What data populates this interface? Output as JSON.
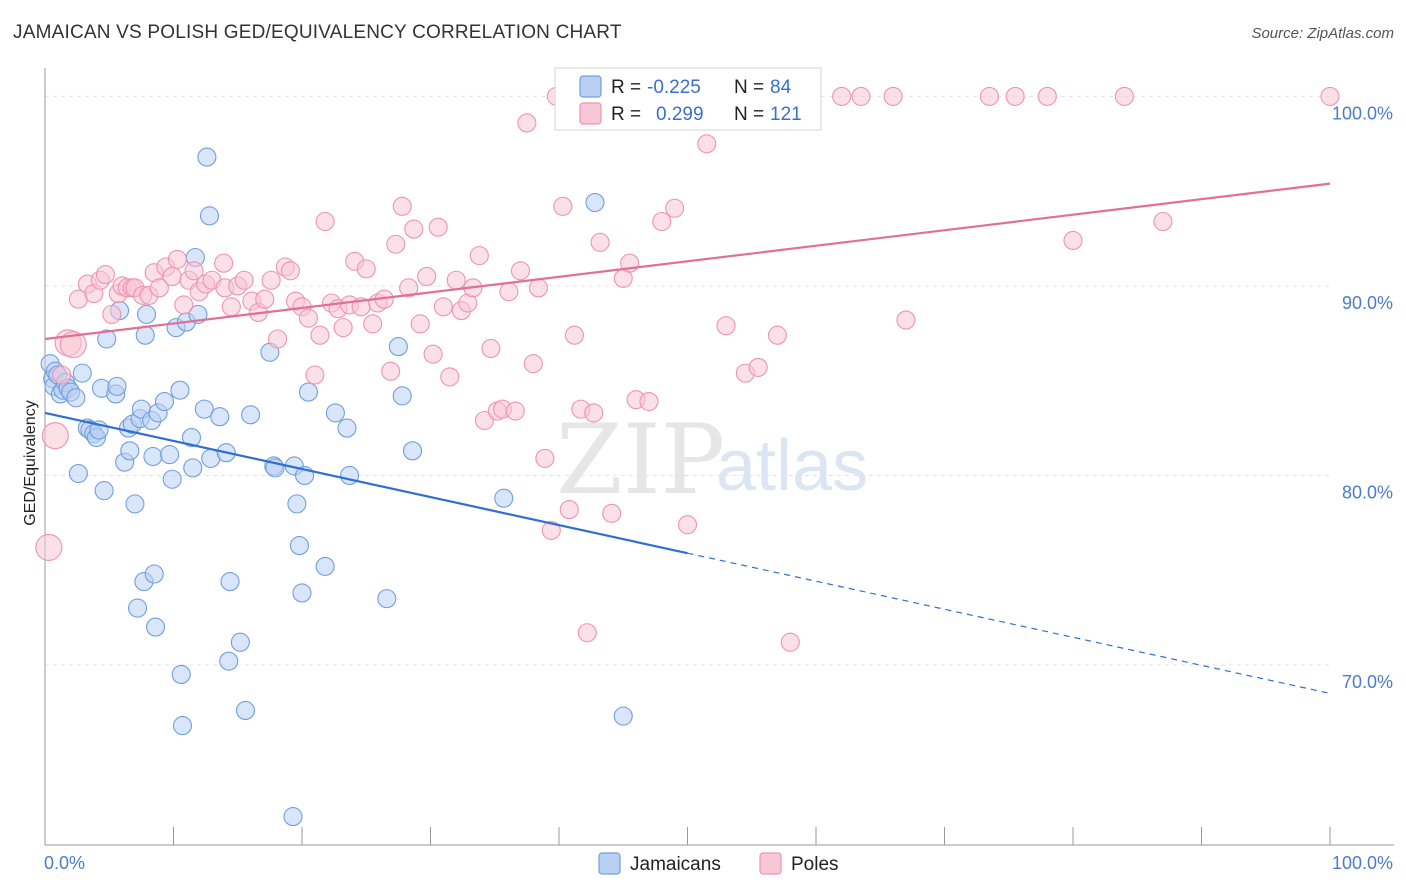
{
  "chart_data": {
    "type": "scatter",
    "title": "JAMAICAN VS POLISH GED/EQUIVALENCY CORRELATION CHART",
    "source": "Source: ZipAtlas.com",
    "xlabel": "",
    "ylabel": "GED/Equivalency",
    "xlim": [
      0,
      100
    ],
    "ylim": [
      60.5,
      101.5
    ],
    "x_tick_labels": [
      "0.0%",
      "100.0%"
    ],
    "y_ticks": [
      {
        "value": 100,
        "label": "100.0%"
      },
      {
        "value": 90,
        "label": "90.0%"
      },
      {
        "value": 80,
        "label": "80.0%"
      },
      {
        "value": 70,
        "label": "70.0%"
      }
    ],
    "grid": true,
    "legend_position": "top-center",
    "watermark": {
      "zip": "ZIP",
      "atlas": "atlas"
    },
    "stats": [
      {
        "r_label": "R =",
        "r_value": "-0.225",
        "n_label": "N =",
        "n_value": "84"
      },
      {
        "r_label": "R =",
        "r_value": "0.299",
        "n_label": "N =",
        "n_value": "121"
      }
    ],
    "series": [
      {
        "name": "Jamaicans",
        "color": "#6f9fe0",
        "fill": "#b9d0f2",
        "line_color": "#2f6fd0",
        "trend": {
          "x0": 0,
          "y0": 83.3,
          "x1": 50,
          "y1": 75.9,
          "dash_to_x": 100,
          "dash_to_y": 68.5
        },
        "points": [
          [
            0.4,
            85.9
          ],
          [
            0.6,
            85.1
          ],
          [
            0.7,
            84.7
          ],
          [
            0.8,
            85.5
          ],
          [
            1.0,
            85.3
          ],
          [
            1.2,
            84.3
          ],
          [
            1.4,
            84.5
          ],
          [
            1.6,
            84.9
          ],
          [
            1.8,
            84.6
          ],
          [
            2.0,
            84.4
          ],
          [
            2.4,
            84.1
          ],
          [
            2.6,
            80.1
          ],
          [
            2.9,
            85.4
          ],
          [
            3.3,
            82.5
          ],
          [
            3.5,
            82.4
          ],
          [
            3.8,
            82.2
          ],
          [
            4.0,
            82.0
          ],
          [
            4.2,
            82.4
          ],
          [
            4.4,
            84.6
          ],
          [
            4.6,
            79.2
          ],
          [
            4.8,
            87.2
          ],
          [
            5.5,
            84.3
          ],
          [
            5.6,
            84.7
          ],
          [
            5.8,
            88.7
          ],
          [
            6.2,
            80.7
          ],
          [
            6.5,
            82.5
          ],
          [
            6.6,
            81.3
          ],
          [
            6.8,
            82.7
          ],
          [
            7.0,
            78.5
          ],
          [
            7.2,
            73.0
          ],
          [
            7.4,
            83.0
          ],
          [
            7.5,
            83.5
          ],
          [
            7.7,
            74.4
          ],
          [
            7.8,
            87.4
          ],
          [
            7.9,
            88.5
          ],
          [
            8.3,
            82.9
          ],
          [
            8.4,
            81.0
          ],
          [
            8.5,
            74.8
          ],
          [
            8.6,
            72.0
          ],
          [
            8.8,
            83.3
          ],
          [
            9.3,
            83.9
          ],
          [
            9.7,
            81.1
          ],
          [
            9.9,
            79.8
          ],
          [
            10.2,
            87.8
          ],
          [
            10.5,
            84.5
          ],
          [
            10.6,
            69.5
          ],
          [
            10.7,
            66.8
          ],
          [
            11.0,
            88.1
          ],
          [
            11.4,
            82.0
          ],
          [
            11.5,
            80.4
          ],
          [
            11.7,
            91.5
          ],
          [
            11.9,
            88.5
          ],
          [
            12.4,
            83.5
          ],
          [
            12.6,
            96.8
          ],
          [
            12.8,
            93.7
          ],
          [
            12.9,
            80.9
          ],
          [
            13.6,
            83.1
          ],
          [
            14.1,
            81.2
          ],
          [
            14.3,
            70.2
          ],
          [
            14.4,
            74.4
          ],
          [
            15.2,
            71.2
          ],
          [
            15.6,
            67.6
          ],
          [
            16.0,
            83.2
          ],
          [
            17.5,
            86.5
          ],
          [
            17.8,
            80.5
          ],
          [
            17.9,
            80.4
          ],
          [
            19.3,
            62.0
          ],
          [
            19.4,
            80.5
          ],
          [
            19.6,
            78.5
          ],
          [
            19.8,
            76.3
          ],
          [
            20.0,
            73.8
          ],
          [
            20.2,
            80.0
          ],
          [
            20.5,
            84.4
          ],
          [
            21.8,
            75.2
          ],
          [
            22.6,
            83.3
          ],
          [
            23.5,
            82.5
          ],
          [
            23.7,
            80.0
          ],
          [
            26.6,
            73.5
          ],
          [
            27.5,
            86.8
          ],
          [
            27.8,
            84.2
          ],
          [
            28.6,
            81.3
          ],
          [
            35.7,
            78.8
          ],
          [
            42.8,
            94.4
          ],
          [
            45.0,
            67.3
          ]
        ]
      },
      {
        "name": "Poles",
        "color": "#ee93b3",
        "fill": "#f8c7d6",
        "line_color": "#e07096",
        "trend": {
          "x0": 0,
          "y0": 87.2,
          "x1": 100,
          "y1": 95.4
        },
        "points": [
          [
            0.3,
            76.2
          ],
          [
            0.8,
            82.1
          ],
          [
            1.3,
            85.3
          ],
          [
            1.8,
            87.0
          ],
          [
            2.2,
            86.9
          ],
          [
            2.6,
            89.3
          ],
          [
            3.3,
            90.1
          ],
          [
            3.8,
            89.6
          ],
          [
            4.3,
            90.3
          ],
          [
            4.7,
            90.6
          ],
          [
            5.2,
            88.5
          ],
          [
            5.7,
            89.6
          ],
          [
            6.0,
            90.0
          ],
          [
            6.4,
            89.9
          ],
          [
            6.8,
            89.9
          ],
          [
            7.0,
            89.9
          ],
          [
            7.6,
            89.5
          ],
          [
            8.1,
            89.5
          ],
          [
            8.5,
            90.7
          ],
          [
            8.9,
            89.9
          ],
          [
            9.4,
            91.0
          ],
          [
            9.9,
            90.5
          ],
          [
            10.3,
            91.4
          ],
          [
            10.8,
            89.0
          ],
          [
            11.2,
            90.3
          ],
          [
            11.6,
            90.8
          ],
          [
            12.0,
            89.7
          ],
          [
            12.5,
            90.1
          ],
          [
            13.0,
            90.3
          ],
          [
            13.9,
            91.2
          ],
          [
            14.0,
            89.9
          ],
          [
            14.5,
            88.9
          ],
          [
            15.0,
            90.0
          ],
          [
            15.5,
            90.3
          ],
          [
            16.1,
            89.2
          ],
          [
            16.6,
            88.6
          ],
          [
            17.1,
            89.3
          ],
          [
            17.6,
            90.3
          ],
          [
            18.1,
            87.2
          ],
          [
            18.7,
            91.0
          ],
          [
            19.1,
            90.8
          ],
          [
            19.5,
            89.2
          ],
          [
            20.0,
            88.9
          ],
          [
            20.5,
            88.3
          ],
          [
            21.0,
            85.3
          ],
          [
            21.4,
            87.4
          ],
          [
            21.8,
            93.4
          ],
          [
            22.3,
            89.1
          ],
          [
            22.8,
            88.8
          ],
          [
            23.2,
            87.8
          ],
          [
            23.7,
            89.0
          ],
          [
            24.1,
            91.3
          ],
          [
            24.6,
            88.9
          ],
          [
            25.0,
            90.9
          ],
          [
            25.5,
            88.0
          ],
          [
            25.9,
            89.1
          ],
          [
            26.4,
            89.3
          ],
          [
            26.9,
            85.5
          ],
          [
            27.3,
            92.2
          ],
          [
            27.8,
            94.2
          ],
          [
            28.3,
            89.9
          ],
          [
            28.7,
            93.0
          ],
          [
            29.2,
            88.0
          ],
          [
            29.7,
            90.5
          ],
          [
            30.2,
            86.4
          ],
          [
            30.6,
            93.1
          ],
          [
            31.0,
            88.9
          ],
          [
            31.5,
            85.2
          ],
          [
            32.0,
            90.3
          ],
          [
            32.4,
            88.7
          ],
          [
            32.9,
            89.1
          ],
          [
            33.3,
            89.9
          ],
          [
            33.8,
            91.6
          ],
          [
            34.2,
            82.9
          ],
          [
            34.7,
            86.7
          ],
          [
            35.2,
            83.4
          ],
          [
            35.6,
            83.5
          ],
          [
            36.1,
            89.7
          ],
          [
            36.6,
            83.4
          ],
          [
            37.0,
            90.8
          ],
          [
            37.5,
            98.6
          ],
          [
            38.0,
            85.9
          ],
          [
            38.4,
            89.9
          ],
          [
            38.9,
            80.9
          ],
          [
            39.4,
            77.1
          ],
          [
            39.8,
            100.0
          ],
          [
            40.3,
            94.2
          ],
          [
            40.8,
            78.2
          ],
          [
            41.2,
            87.4
          ],
          [
            41.7,
            83.5
          ],
          [
            42.2,
            71.7
          ],
          [
            42.7,
            83.3
          ],
          [
            43.2,
            92.3
          ],
          [
            44.1,
            78.0
          ],
          [
            45.0,
            90.4
          ],
          [
            45.5,
            91.2
          ],
          [
            46.0,
            84.0
          ],
          [
            47.0,
            83.9
          ],
          [
            48.0,
            93.4
          ],
          [
            49.0,
            94.1
          ],
          [
            50.0,
            77.4
          ],
          [
            51.5,
            97.5
          ],
          [
            53.0,
            87.9
          ],
          [
            54.5,
            85.4
          ],
          [
            55.5,
            85.7
          ],
          [
            57.0,
            87.4
          ],
          [
            58.0,
            71.2
          ],
          [
            62.0,
            100.0
          ],
          [
            63.5,
            100.0
          ],
          [
            66.0,
            100.0
          ],
          [
            67.0,
            88.2
          ],
          [
            73.5,
            100.0
          ],
          [
            75.5,
            100.0
          ],
          [
            78.0,
            100.0
          ],
          [
            80.0,
            92.4
          ],
          [
            84.0,
            100.0
          ],
          [
            87.0,
            93.4
          ],
          [
            100.0,
            100.0
          ]
        ]
      }
    ]
  }
}
